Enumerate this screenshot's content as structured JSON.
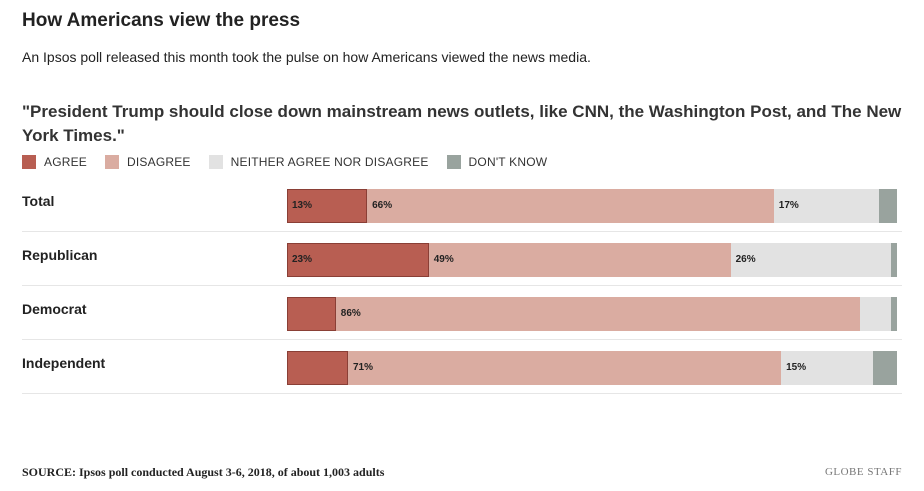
{
  "header": {
    "title": "How Americans view the press",
    "subtitle": "An Ipsos poll released this month took the pulse on how Americans viewed the news media."
  },
  "chart_data": {
    "type": "bar",
    "orientation": "horizontal",
    "stacked": true,
    "title": "\"President Trump should close down mainstream news outlets, like CNN, the Washington Post, and The New York Times.\"",
    "legend_position": "top-left",
    "categories": [
      "Total",
      "Republican",
      "Democrat",
      "Independent"
    ],
    "series": [
      {
        "name": "AGREE",
        "color": "#b85e52",
        "values": [
          13,
          23,
          8,
          10
        ],
        "labels": [
          "13%",
          "23%",
          "",
          ""
        ]
      },
      {
        "name": "DISAGREE",
        "color": "#daaca1",
        "values": [
          66,
          49,
          86,
          71
        ],
        "labels": [
          "66%",
          "49%",
          "86%",
          "71%"
        ]
      },
      {
        "name": "NEITHER AGREE NOR DISAGREE",
        "color": "#e2e2e2",
        "values": [
          17,
          26,
          5,
          15
        ],
        "labels": [
          "17%",
          "26%",
          "",
          "15%"
        ]
      },
      {
        "name": "DON'T KNOW",
        "color": "#99a39e",
        "values": [
          3,
          1,
          1,
          4
        ],
        "labels": [
          "",
          "",
          "",
          ""
        ]
      }
    ],
    "xlim": [
      0,
      100
    ]
  },
  "footer": {
    "source": "SOURCE: Ipsos poll conducted August 3-6, 2018, of about 1,003 adults",
    "credit": "GLOBE STAFF"
  }
}
